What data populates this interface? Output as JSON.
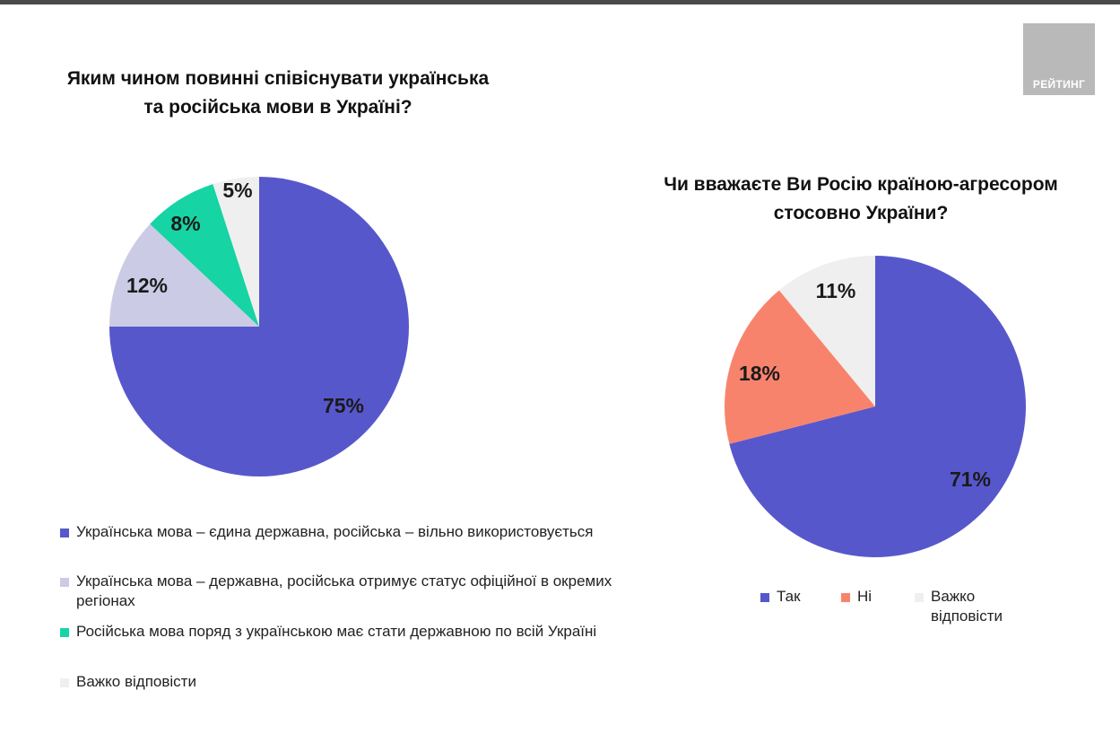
{
  "logo_text": "РЕЙТИНГ",
  "chart_data": [
    {
      "type": "pie",
      "title": "Яким чином повинні співіснувати українська\nта російська мови в Україні?",
      "series": [
        {
          "name": "Українська мова – єдина державна, російська – вільно використовується",
          "value": 75,
          "label": "75%",
          "color": "#5757cc"
        },
        {
          "name": "Українська мова – державна, російська отримує статус офіційної в окремих регіонах",
          "value": 12,
          "label": "12%",
          "color": "#cbcbe6"
        },
        {
          "name": "Російська мова поряд з українською має стати державною по всій Україні",
          "value": 8,
          "label": "8%",
          "color": "#16d4a4"
        },
        {
          "name": "Важко відповісти",
          "value": 5,
          "label": "5%",
          "color": "#efefef"
        }
      ],
      "legend_position": "bottom"
    },
    {
      "type": "pie",
      "title": "Чи вважаєте Ви Росію країною-агресором\nстосовно України?",
      "series": [
        {
          "name": "Так",
          "value": 71,
          "label": "71%",
          "color": "#5757cc"
        },
        {
          "name": "Ні",
          "value": 18,
          "label": "18%",
          "color": "#f8836d"
        },
        {
          "name": "Важко відповісти",
          "value": 11,
          "label": "11%",
          "color": "#efefef"
        }
      ],
      "legend_position": "bottom"
    }
  ]
}
